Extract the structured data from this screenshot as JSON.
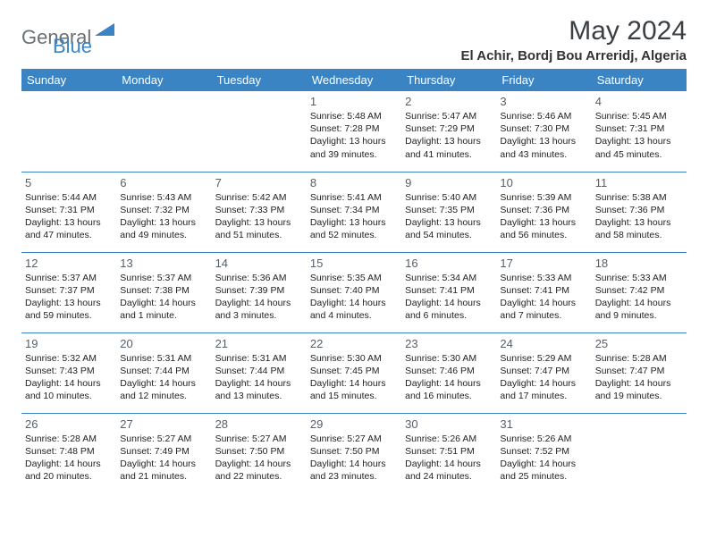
{
  "logo": {
    "word1": "General",
    "word2": "Blue"
  },
  "title": "May 2024",
  "subtitle": "El Achir, Bordj Bou Arreridj, Algeria",
  "colors": {
    "header_bg": "#3b84c4",
    "header_text": "#ffffff",
    "divider": "#3b84c4",
    "title_color": "#3a3f44",
    "logo_gray": "#6a7077",
    "logo_blue": "#3b84c4",
    "daynum_color": "#57606a",
    "body_text": "#222222",
    "background": "#ffffff"
  },
  "day_headers": [
    "Sunday",
    "Monday",
    "Tuesday",
    "Wednesday",
    "Thursday",
    "Friday",
    "Saturday"
  ],
  "weeks": [
    [
      null,
      null,
      null,
      {
        "n": "1",
        "sr": "5:48 AM",
        "ss": "7:28 PM",
        "dl": "13 hours and 39 minutes."
      },
      {
        "n": "2",
        "sr": "5:47 AM",
        "ss": "7:29 PM",
        "dl": "13 hours and 41 minutes."
      },
      {
        "n": "3",
        "sr": "5:46 AM",
        "ss": "7:30 PM",
        "dl": "13 hours and 43 minutes."
      },
      {
        "n": "4",
        "sr": "5:45 AM",
        "ss": "7:31 PM",
        "dl": "13 hours and 45 minutes."
      }
    ],
    [
      {
        "n": "5",
        "sr": "5:44 AM",
        "ss": "7:31 PM",
        "dl": "13 hours and 47 minutes."
      },
      {
        "n": "6",
        "sr": "5:43 AM",
        "ss": "7:32 PM",
        "dl": "13 hours and 49 minutes."
      },
      {
        "n": "7",
        "sr": "5:42 AM",
        "ss": "7:33 PM",
        "dl": "13 hours and 51 minutes."
      },
      {
        "n": "8",
        "sr": "5:41 AM",
        "ss": "7:34 PM",
        "dl": "13 hours and 52 minutes."
      },
      {
        "n": "9",
        "sr": "5:40 AM",
        "ss": "7:35 PM",
        "dl": "13 hours and 54 minutes."
      },
      {
        "n": "10",
        "sr": "5:39 AM",
        "ss": "7:36 PM",
        "dl": "13 hours and 56 minutes."
      },
      {
        "n": "11",
        "sr": "5:38 AM",
        "ss": "7:36 PM",
        "dl": "13 hours and 58 minutes."
      }
    ],
    [
      {
        "n": "12",
        "sr": "5:37 AM",
        "ss": "7:37 PM",
        "dl": "13 hours and 59 minutes."
      },
      {
        "n": "13",
        "sr": "5:37 AM",
        "ss": "7:38 PM",
        "dl": "14 hours and 1 minute."
      },
      {
        "n": "14",
        "sr": "5:36 AM",
        "ss": "7:39 PM",
        "dl": "14 hours and 3 minutes."
      },
      {
        "n": "15",
        "sr": "5:35 AM",
        "ss": "7:40 PM",
        "dl": "14 hours and 4 minutes."
      },
      {
        "n": "16",
        "sr": "5:34 AM",
        "ss": "7:41 PM",
        "dl": "14 hours and 6 minutes."
      },
      {
        "n": "17",
        "sr": "5:33 AM",
        "ss": "7:41 PM",
        "dl": "14 hours and 7 minutes."
      },
      {
        "n": "18",
        "sr": "5:33 AM",
        "ss": "7:42 PM",
        "dl": "14 hours and 9 minutes."
      }
    ],
    [
      {
        "n": "19",
        "sr": "5:32 AM",
        "ss": "7:43 PM",
        "dl": "14 hours and 10 minutes."
      },
      {
        "n": "20",
        "sr": "5:31 AM",
        "ss": "7:44 PM",
        "dl": "14 hours and 12 minutes."
      },
      {
        "n": "21",
        "sr": "5:31 AM",
        "ss": "7:44 PM",
        "dl": "14 hours and 13 minutes."
      },
      {
        "n": "22",
        "sr": "5:30 AM",
        "ss": "7:45 PM",
        "dl": "14 hours and 15 minutes."
      },
      {
        "n": "23",
        "sr": "5:30 AM",
        "ss": "7:46 PM",
        "dl": "14 hours and 16 minutes."
      },
      {
        "n": "24",
        "sr": "5:29 AM",
        "ss": "7:47 PM",
        "dl": "14 hours and 17 minutes."
      },
      {
        "n": "25",
        "sr": "5:28 AM",
        "ss": "7:47 PM",
        "dl": "14 hours and 19 minutes."
      }
    ],
    [
      {
        "n": "26",
        "sr": "5:28 AM",
        "ss": "7:48 PM",
        "dl": "14 hours and 20 minutes."
      },
      {
        "n": "27",
        "sr": "5:27 AM",
        "ss": "7:49 PM",
        "dl": "14 hours and 21 minutes."
      },
      {
        "n": "28",
        "sr": "5:27 AM",
        "ss": "7:50 PM",
        "dl": "14 hours and 22 minutes."
      },
      {
        "n": "29",
        "sr": "5:27 AM",
        "ss": "7:50 PM",
        "dl": "14 hours and 23 minutes."
      },
      {
        "n": "30",
        "sr": "5:26 AM",
        "ss": "7:51 PM",
        "dl": "14 hours and 24 minutes."
      },
      {
        "n": "31",
        "sr": "5:26 AM",
        "ss": "7:52 PM",
        "dl": "14 hours and 25 minutes."
      },
      null
    ]
  ],
  "labels": {
    "sunrise": "Sunrise:",
    "sunset": "Sunset:",
    "daylight": "Daylight:"
  }
}
